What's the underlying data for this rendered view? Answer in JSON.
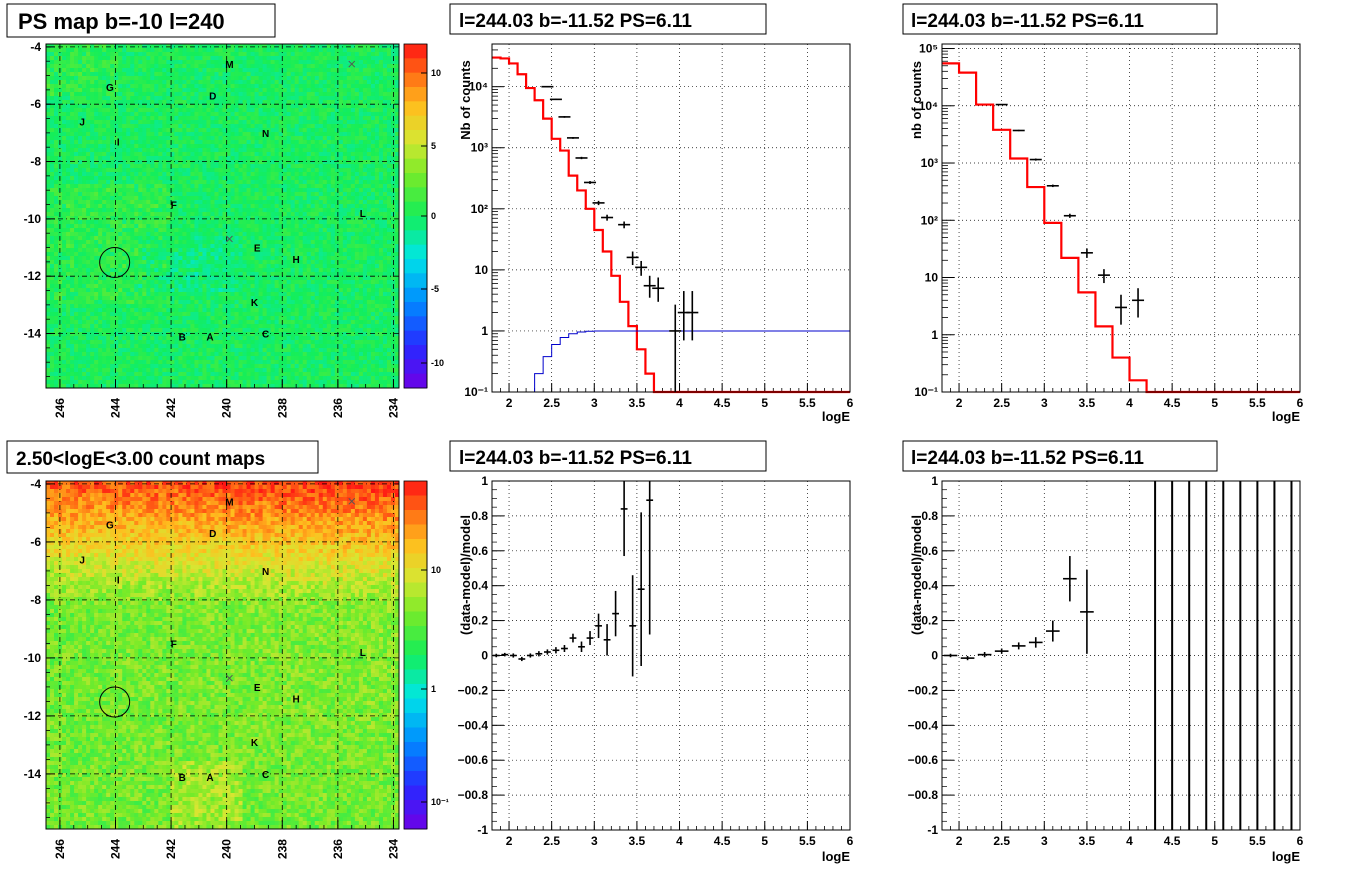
{
  "panels": {
    "ps_map": {
      "title": "PS map b=-10 l=240",
      "x_ticks": [
        "246",
        "244",
        "242",
        "240",
        "238",
        "236",
        "234"
      ],
      "y_ticks": [
        "-4",
        "-6",
        "-8",
        "-10",
        "-12",
        "-14"
      ],
      "colorbar_ticks": [
        "10",
        "5",
        "0",
        "-5",
        "-10"
      ]
    },
    "count_map": {
      "title": "2.50<logE<3.00 count maps",
      "x_ticks": [
        "246",
        "244",
        "242",
        "240",
        "238",
        "236",
        "234"
      ],
      "y_ticks": [
        "-4",
        "-6",
        "-8",
        "-10",
        "-12",
        "-14"
      ],
      "colorbar_ticks": [
        "10",
        "1",
        "10⁻¹"
      ]
    },
    "spec1": {
      "title": "l=244.03 b=-11.52 PS=6.11",
      "ylabel": "Nb of counts",
      "xlabel": "logE"
    },
    "spec2": {
      "title": "l=244.03 b=-11.52 PS=6.11",
      "ylabel": "nb of counts",
      "xlabel": "logE"
    },
    "res1": {
      "title": "l=244.03 b=-11.52 PS=6.11",
      "ylabel": "(data-model)/model",
      "xlabel": "logE"
    },
    "res2": {
      "title": "l=244.03 b=-11.52 PS=6.11",
      "ylabel": "(data-model)/model",
      "xlabel": "logE"
    }
  },
  "map_markers": {
    "letters": [
      {
        "t": "M",
        "l": 239.9,
        "b": -4.6
      },
      {
        "t": "G",
        "l": 244.2,
        "b": -5.4
      },
      {
        "t": "D",
        "l": 240.5,
        "b": -5.7
      },
      {
        "t": "J",
        "l": 245.2,
        "b": -6.6
      },
      {
        "t": "N",
        "l": 238.6,
        "b": -7.0
      },
      {
        "t": "I",
        "l": 243.9,
        "b": -7.3
      },
      {
        "t": "F",
        "l": 241.9,
        "b": -9.5
      },
      {
        "t": "L",
        "l": 235.1,
        "b": -9.8
      },
      {
        "t": "E",
        "l": 238.9,
        "b": -11.0
      },
      {
        "t": "H",
        "l": 237.5,
        "b": -11.4
      },
      {
        "t": "K",
        "l": 239.0,
        "b": -12.9
      },
      {
        "t": "B",
        "l": 241.6,
        "b": -14.1
      },
      {
        "t": "A",
        "l": 240.6,
        "b": -14.1
      },
      {
        "t": "C",
        "l": 238.6,
        "b": -14.0
      }
    ],
    "crosses": [
      {
        "l": 235.5,
        "b": -4.6
      },
      {
        "l": 239.9,
        "b": -10.7
      }
    ],
    "circle": {
      "l": 244.03,
      "b": -11.52
    }
  },
  "colors": {
    "model": "#ff0000",
    "exposure": "#0000cc",
    "data": "#000000",
    "grid": "#000000"
  },
  "chart_data": [
    {
      "type": "heatmap",
      "id": "ps_map",
      "title": "PS map b=-10 l=240",
      "xlim": [
        246.5,
        233.8
      ],
      "ylim": [
        -15.9,
        -3.9
      ],
      "colorbar": {
        "min": -12,
        "max": 12,
        "dominant_value": 0
      }
    },
    {
      "type": "heatmap",
      "id": "count_map",
      "title": "2.50<logE<3.00 count maps",
      "xlim": [
        246.5,
        233.8
      ],
      "ylim": [
        -15.9,
        -3.9
      ],
      "colorbar": {
        "scale": "log",
        "min": 0.06,
        "max": 40
      }
    },
    {
      "type": "line",
      "id": "spec1",
      "title": "l=244.03 b=-11.52 PS=6.11",
      "xlabel": "logE",
      "ylabel": "Nb of counts",
      "yscale": "log",
      "xlim": [
        1.8,
        6.0
      ],
      "ylim": [
        0.1,
        50000
      ],
      "grid": true,
      "xticks": [
        2,
        2.5,
        3,
        3.5,
        4,
        4.5,
        5,
        5.5,
        6
      ],
      "yticks": [
        {
          "v": 0.1,
          "lab": "10⁻¹"
        },
        {
          "v": 1,
          "lab": "1"
        },
        {
          "v": 10,
          "lab": "10"
        },
        {
          "v": 100,
          "lab": "10²"
        },
        {
          "v": 1000,
          "lab": "10³"
        },
        {
          "v": 10000,
          "lab": "10⁴"
        }
      ],
      "series": [
        {
          "role": "model",
          "step": true,
          "x0": 1.8,
          "dx": 0.1,
          "values": [
            30000,
            29000,
            24000,
            16000,
            9500,
            6000,
            3000,
            1400,
            900,
            350,
            200,
            100,
            45,
            20,
            8,
            3,
            1.2,
            0.5,
            0.2,
            0.1,
            0.1,
            0.1,
            0.1,
            0.1,
            0.1,
            0.1,
            0.1,
            0.1,
            0.1,
            0.1,
            0.1,
            0.1,
            0.1,
            0.1,
            0.1,
            0.1,
            0.1,
            0.1,
            0.1,
            0.1,
            0.1,
            0.1
          ]
        },
        {
          "role": "exposure",
          "step": true,
          "x0": 1.8,
          "dx": 0.1,
          "values": [
            0.1,
            0.1,
            0.1,
            0.1,
            0.1,
            0.2,
            0.38,
            0.6,
            0.78,
            0.9,
            0.96,
            0.99,
            1,
            1,
            1,
            1,
            1,
            1,
            1,
            1,
            1,
            1,
            1,
            1,
            1,
            1,
            1,
            1,
            1,
            1,
            1,
            1,
            1,
            1,
            1,
            1,
            1,
            1,
            1,
            1,
            1,
            1
          ]
        },
        {
          "role": "data",
          "points": [
            {
              "x": 2.45,
              "y": 10000,
              "lo": 9800,
              "hi": 10200
            },
            {
              "x": 2.55,
              "y": 6200,
              "lo": 6050,
              "hi": 6350
            },
            {
              "x": 2.65,
              "y": 3200,
              "lo": 3100,
              "hi": 3300
            },
            {
              "x": 2.75,
              "y": 1450,
              "lo": 1400,
              "hi": 1500
            },
            {
              "x": 2.85,
              "y": 680,
              "lo": 650,
              "hi": 710
            },
            {
              "x": 2.95,
              "y": 270,
              "lo": 255,
              "hi": 285
            },
            {
              "x": 3.05,
              "y": 125,
              "lo": 115,
              "hi": 135
            },
            {
              "x": 3.15,
              "y": 72,
              "lo": 64,
              "hi": 80
            },
            {
              "x": 3.35,
              "y": 55,
              "lo": 48,
              "hi": 62
            },
            {
              "x": 3.45,
              "y": 16,
              "lo": 12,
              "hi": 20
            },
            {
              "x": 3.55,
              "y": 11,
              "lo": 8,
              "hi": 14
            },
            {
              "x": 3.65,
              "y": 5.5,
              "lo": 3.5,
              "hi": 8
            },
            {
              "x": 3.75,
              "y": 5,
              "lo": 3,
              "hi": 7.5
            },
            {
              "x": 3.95,
              "y": 1,
              "lo": 0.1,
              "hi": 2.7
            },
            {
              "x": 4.05,
              "y": 2,
              "lo": 0.7,
              "hi": 4.5
            },
            {
              "x": 4.15,
              "y": 2,
              "lo": 0.7,
              "hi": 4.5
            }
          ]
        }
      ]
    },
    {
      "type": "line",
      "id": "spec2",
      "title": "l=244.03 b=-11.52 PS=6.11",
      "xlabel": "logE",
      "ylabel": "nb of counts",
      "yscale": "log",
      "xlim": [
        1.8,
        6.0
      ],
      "ylim": [
        0.1,
        120000
      ],
      "grid": true,
      "xticks": [
        2,
        2.5,
        3,
        3.5,
        4,
        4.5,
        5,
        5.5,
        6
      ],
      "yticks": [
        {
          "v": 0.1,
          "lab": "10⁻¹"
        },
        {
          "v": 1,
          "lab": "1"
        },
        {
          "v": 10,
          "lab": "10"
        },
        {
          "v": 100,
          "lab": "10²"
        },
        {
          "v": 1000,
          "lab": "10³"
        },
        {
          "v": 10000,
          "lab": "10⁴"
        },
        {
          "v": 100000,
          "lab": "10⁵"
        }
      ],
      "series": [
        {
          "role": "model",
          "step": true,
          "x0": 1.8,
          "dx": 0.2,
          "values": [
            55000,
            38000,
            10500,
            3800,
            1200,
            380,
            90,
            22,
            5.5,
            1.4,
            0.4,
            0.16,
            0.1,
            0.1,
            0.1,
            0.1,
            0.1,
            0.1,
            0.1,
            0.1,
            0.1
          ]
        },
        {
          "role": "data",
          "points": [
            {
              "x": 2.5,
              "y": 10500,
              "lo": 10300,
              "hi": 10700
            },
            {
              "x": 2.7,
              "y": 3700,
              "lo": 3600,
              "hi": 3800
            },
            {
              "x": 2.9,
              "y": 1150,
              "lo": 1100,
              "hi": 1200
            },
            {
              "x": 3.1,
              "y": 400,
              "lo": 380,
              "hi": 420
            },
            {
              "x": 3.3,
              "y": 120,
              "lo": 110,
              "hi": 130
            },
            {
              "x": 3.5,
              "y": 27,
              "lo": 22,
              "hi": 32
            },
            {
              "x": 3.7,
              "y": 11,
              "lo": 8,
              "hi": 14
            },
            {
              "x": 3.9,
              "y": 3,
              "lo": 1.5,
              "hi": 5
            },
            {
              "x": 4.1,
              "y": 4,
              "lo": 2,
              "hi": 6.5
            }
          ]
        }
      ]
    },
    {
      "type": "scatter",
      "id": "res1",
      "title": "l=244.03 b=-11.52 PS=6.11",
      "xlabel": "logE",
      "ylabel": "(data-model)/model",
      "xlim": [
        1.8,
        6.0
      ],
      "ylim": [
        -1,
        1
      ],
      "grid": true,
      "xticks": [
        2,
        2.5,
        3,
        3.5,
        4,
        4.5,
        5,
        5.5,
        6
      ],
      "yticks": [
        -1,
        -0.8,
        -0.6,
        -0.4,
        -0.2,
        0,
        0.2,
        0.4,
        0.6,
        0.8,
        1
      ],
      "series": [
        {
          "role": "data",
          "dx": 0.1,
          "points": [
            {
              "x": 1.85,
              "y": 0.0,
              "e": 0.01
            },
            {
              "x": 1.95,
              "y": 0.005,
              "e": 0.01
            },
            {
              "x": 2.05,
              "y": 0.0,
              "e": 0.012
            },
            {
              "x": 2.15,
              "y": -0.02,
              "e": 0.012
            },
            {
              "x": 2.25,
              "y": 0.0,
              "e": 0.012
            },
            {
              "x": 2.35,
              "y": 0.01,
              "e": 0.015
            },
            {
              "x": 2.45,
              "y": 0.02,
              "e": 0.015
            },
            {
              "x": 2.55,
              "y": 0.03,
              "e": 0.018
            },
            {
              "x": 2.65,
              "y": 0.04,
              "e": 0.02
            },
            {
              "x": 2.75,
              "y": 0.1,
              "e": 0.025
            },
            {
              "x": 2.85,
              "y": 0.05,
              "e": 0.03
            },
            {
              "x": 2.95,
              "y": 0.1,
              "e": 0.04
            },
            {
              "x": 3.05,
              "y": 0.17,
              "e": 0.07
            },
            {
              "x": 3.15,
              "y": 0.09,
              "e": 0.09
            },
            {
              "x": 3.25,
              "y": 0.24,
              "e": 0.13
            },
            {
              "x": 3.35,
              "y": 0.84,
              "e": 0.27
            },
            {
              "x": 3.45,
              "y": 0.17,
              "e": 0.29
            },
            {
              "x": 3.55,
              "y": 0.38,
              "e": 0.44
            },
            {
              "x": 3.65,
              "y": 0.89,
              "e": 0.77
            }
          ]
        }
      ]
    },
    {
      "type": "scatter",
      "id": "res2",
      "title": "l=244.03 b=-11.52 PS=6.11",
      "xlabel": "logE",
      "ylabel": "(data-model)/model",
      "xlim": [
        1.8,
        6.0
      ],
      "ylim": [
        -1,
        1
      ],
      "grid": true,
      "xticks": [
        2,
        2.5,
        3,
        3.5,
        4,
        4.5,
        5,
        5.5,
        6
      ],
      "yticks": [
        -1,
        -0.8,
        -0.6,
        -0.4,
        -0.2,
        0,
        0.2,
        0.4,
        0.6,
        0.8,
        1
      ],
      "series": [
        {
          "role": "data",
          "dx": 0.2,
          "points": [
            {
              "x": 1.9,
              "y": 0.0,
              "e": 0.01
            },
            {
              "x": 2.1,
              "y": -0.015,
              "e": 0.012
            },
            {
              "x": 2.3,
              "y": 0.005,
              "e": 0.015
            },
            {
              "x": 2.5,
              "y": 0.025,
              "e": 0.015
            },
            {
              "x": 2.7,
              "y": 0.055,
              "e": 0.02
            },
            {
              "x": 2.9,
              "y": 0.075,
              "e": 0.03
            },
            {
              "x": 3.1,
              "y": 0.14,
              "e": 0.06
            },
            {
              "x": 3.3,
              "y": 0.44,
              "e": 0.13
            },
            {
              "x": 3.5,
              "y": 0.25,
              "e": 0.24
            }
          ]
        },
        {
          "role": "full_range_bars",
          "x": [
            4.3,
            4.5,
            4.7,
            4.9,
            5.1,
            5.3,
            5.5,
            5.7,
            5.9
          ]
        }
      ]
    }
  ]
}
